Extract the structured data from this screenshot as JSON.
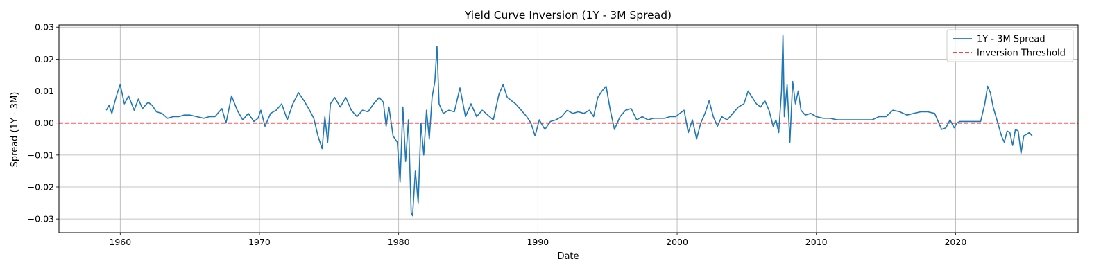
{
  "chart_data": {
    "type": "line",
    "title": "Yield Curve Inversion (1Y - 3M Spread)",
    "xlabel": "Date",
    "ylabel": "Spread (1Y - 3M)",
    "xlim": [
      1955.6,
      2028.8
    ],
    "ylim": [
      -0.0343,
      0.0307
    ],
    "xticks": [
      1960,
      1970,
      1980,
      1990,
      2000,
      2010,
      2020
    ],
    "yticks": [
      -0.03,
      -0.02,
      -0.01,
      0.0,
      0.01,
      0.02,
      0.03
    ],
    "ytick_labels": [
      "−0.03",
      "−0.02",
      "−0.01",
      "0.00",
      "0.01",
      "0.02",
      "0.03"
    ],
    "grid": true,
    "legend_position": "top-right",
    "colors": {
      "spread": "#1f77b4",
      "threshold": "#ff0000"
    },
    "series": [
      {
        "name": "1Y - 3M Spread",
        "style": "solid",
        "x": [
          1959.0,
          1959.2,
          1959.4,
          1959.6,
          1959.8,
          1960.0,
          1960.3,
          1960.6,
          1961.0,
          1961.3,
          1961.6,
          1962.0,
          1962.3,
          1962.6,
          1963.0,
          1963.4,
          1963.8,
          1964.2,
          1964.6,
          1965.0,
          1965.5,
          1966.0,
          1966.4,
          1966.8,
          1967.0,
          1967.3,
          1967.6,
          1968.0,
          1968.4,
          1968.8,
          1969.2,
          1969.6,
          1969.9,
          1970.1,
          1970.4,
          1970.8,
          1971.2,
          1971.6,
          1972.0,
          1972.4,
          1972.8,
          1973.2,
          1973.6,
          1973.9,
          1974.2,
          1974.5,
          1974.7,
          1974.9,
          1975.1,
          1975.4,
          1975.8,
          1976.2,
          1976.6,
          1977.0,
          1977.4,
          1977.8,
          1978.2,
          1978.6,
          1978.9,
          1979.1,
          1979.3,
          1979.6,
          1979.9,
          1980.1,
          1980.3,
          1980.5,
          1980.7,
          1980.9,
          1981.0,
          1981.2,
          1981.4,
          1981.6,
          1981.8,
          1982.0,
          1982.2,
          1982.4,
          1982.6,
          1982.75,
          1982.9,
          1983.2,
          1983.6,
          1984.0,
          1984.4,
          1984.8,
          1985.2,
          1985.6,
          1986.0,
          1986.4,
          1986.8,
          1987.2,
          1987.5,
          1987.8,
          1988.1,
          1988.4,
          1988.8,
          1989.2,
          1989.5,
          1989.8,
          1990.1,
          1990.5,
          1990.9,
          1991.3,
          1991.7,
          1992.1,
          1992.5,
          1992.9,
          1993.3,
          1993.7,
          1994.0,
          1994.3,
          1994.6,
          1994.9,
          1995.2,
          1995.5,
          1995.9,
          1996.3,
          1996.7,
          1997.1,
          1997.5,
          1997.9,
          1998.3,
          1998.7,
          1999.1,
          1999.5,
          1999.9,
          2000.2,
          2000.5,
          2000.8,
          2001.1,
          2001.4,
          2001.7,
          2002.0,
          2002.3,
          2002.6,
          2002.9,
          2003.2,
          2003.6,
          2004.0,
          2004.4,
          2004.8,
          2005.1,
          2005.4,
          2005.7,
          2006.0,
          2006.3,
          2006.6,
          2006.9,
          2007.1,
          2007.3,
          2007.5,
          2007.6,
          2007.7,
          2007.9,
          2008.1,
          2008.3,
          2008.5,
          2008.7,
          2008.9,
          2009.2,
          2009.6,
          2010.0,
          2010.5,
          2011.0,
          2011.5,
          2012.0,
          2012.5,
          2013.0,
          2013.5,
          2014.0,
          2014.5,
          2015.0,
          2015.5,
          2016.0,
          2016.5,
          2017.0,
          2017.5,
          2018.0,
          2018.5,
          2019.0,
          2019.3,
          2019.6,
          2019.9,
          2020.1,
          2020.3,
          2020.6,
          2021.0,
          2021.4,
          2021.8,
          2022.1,
          2022.3,
          2022.5,
          2022.7,
          2022.9,
          2023.1,
          2023.3,
          2023.5,
          2023.7,
          2023.9,
          2024.1,
          2024.3,
          2024.5,
          2024.7,
          2024.9,
          2025.1,
          2025.3,
          2025.5
        ],
        "y": [
          0.004,
          0.0055,
          0.003,
          0.0065,
          0.0095,
          0.012,
          0.006,
          0.0085,
          0.004,
          0.0075,
          0.0045,
          0.0065,
          0.0055,
          0.0035,
          0.003,
          0.0015,
          0.002,
          0.002,
          0.0025,
          0.0025,
          0.002,
          0.0015,
          0.002,
          0.002,
          0.003,
          0.0045,
          0.0,
          0.0085,
          0.004,
          0.001,
          0.003,
          0.0005,
          0.0015,
          0.004,
          -0.001,
          0.003,
          0.004,
          0.006,
          0.001,
          0.006,
          0.0095,
          0.007,
          0.004,
          0.0015,
          -0.004,
          -0.008,
          0.002,
          -0.006,
          0.006,
          0.008,
          0.005,
          0.008,
          0.004,
          0.002,
          0.004,
          0.0035,
          0.006,
          0.008,
          0.0065,
          -0.001,
          0.005,
          -0.004,
          -0.006,
          -0.0185,
          0.005,
          -0.012,
          0.001,
          -0.028,
          -0.029,
          -0.015,
          -0.025,
          0.0,
          -0.01,
          0.004,
          -0.005,
          0.008,
          0.013,
          0.024,
          0.006,
          0.003,
          0.004,
          0.0035,
          0.011,
          0.002,
          0.006,
          0.002,
          0.004,
          0.0025,
          0.001,
          0.009,
          0.012,
          0.008,
          0.007,
          0.006,
          0.004,
          0.002,
          0.0,
          -0.004,
          0.001,
          -0.002,
          0.0005,
          0.001,
          0.002,
          0.004,
          0.003,
          0.0035,
          0.003,
          0.004,
          0.002,
          0.008,
          0.01,
          0.0115,
          0.004,
          -0.002,
          0.002,
          0.004,
          0.0045,
          0.001,
          0.002,
          0.001,
          0.0015,
          0.0015,
          0.0015,
          0.002,
          0.002,
          0.003,
          0.004,
          -0.003,
          0.001,
          -0.005,
          0.0,
          0.003,
          0.007,
          0.002,
          -0.001,
          0.002,
          0.001,
          0.003,
          0.005,
          0.006,
          0.01,
          0.008,
          0.006,
          0.005,
          0.007,
          0.004,
          -0.001,
          0.001,
          -0.003,
          0.01,
          0.0275,
          0.002,
          0.012,
          -0.006,
          0.013,
          0.006,
          0.01,
          0.004,
          0.0025,
          0.003,
          0.002,
          0.0015,
          0.0015,
          0.001,
          0.001,
          0.001,
          0.001,
          0.001,
          0.001,
          0.002,
          0.002,
          0.004,
          0.0035,
          0.0025,
          0.003,
          0.0035,
          0.0035,
          0.003,
          -0.002,
          -0.0015,
          0.001,
          -0.0015,
          0.0,
          0.0005,
          0.0005,
          0.0005,
          0.0005,
          0.0005,
          0.006,
          0.0115,
          0.0095,
          0.005,
          0.002,
          -0.001,
          -0.004,
          -0.006,
          -0.0025,
          -0.003,
          -0.007,
          -0.002,
          -0.0025,
          -0.0095,
          -0.004,
          -0.0035,
          -0.003,
          -0.004
        ]
      },
      {
        "name": "Inversion Threshold",
        "style": "dashed",
        "y_constant": 0.0
      }
    ]
  }
}
